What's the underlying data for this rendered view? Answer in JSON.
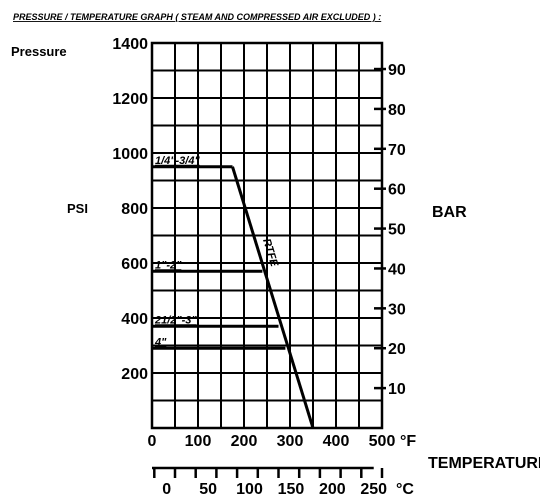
{
  "chart_data": {
    "type": "line",
    "title": "PRESSURE / TEMPERATURE GRAPH ( STEAM AND COMPRESSED AIR EXCLUDED ) :",
    "y_title": "Pressure",
    "y_left_label": "PSI",
    "y_right_label": "BAR",
    "x_label": "TEMPERATURE",
    "x_unit_f": "°F",
    "x_unit_c": "°C",
    "xlim_f": [
      0,
      500
    ],
    "ylim_psi": [
      0,
      1400
    ],
    "grid": true,
    "psi_ticks": [
      {
        "value": 200,
        "label": "200"
      },
      {
        "value": 400,
        "label": "400"
      },
      {
        "value": 600,
        "label": "600"
      },
      {
        "value": 800,
        "label": "800"
      },
      {
        "value": 1000,
        "label": "1000"
      },
      {
        "value": 1200,
        "label": "1200"
      },
      {
        "value": 1400,
        "label": "1400"
      }
    ],
    "bar_ticks": [
      {
        "value": 10,
        "label": "10"
      },
      {
        "value": 20,
        "label": "20"
      },
      {
        "value": 30,
        "label": "30"
      },
      {
        "value": 40,
        "label": "40"
      },
      {
        "value": 50,
        "label": "50"
      },
      {
        "value": 60,
        "label": "60"
      },
      {
        "value": 70,
        "label": "70"
      },
      {
        "value": 80,
        "label": "80"
      },
      {
        "value": 90,
        "label": "90"
      }
    ],
    "f_ticks": [
      {
        "value": 0,
        "label": "0"
      },
      {
        "value": 100,
        "label": "100"
      },
      {
        "value": 200,
        "label": "200"
      },
      {
        "value": 300,
        "label": "300"
      },
      {
        "value": 400,
        "label": "400"
      },
      {
        "value": 500,
        "label": "500"
      }
    ],
    "c_ticks": [
      {
        "value": 0,
        "label": "0"
      },
      {
        "value": 50,
        "label": "50"
      },
      {
        "value": 100,
        "label": "100"
      },
      {
        "value": 150,
        "label": "150"
      },
      {
        "value": 200,
        "label": "200"
      },
      {
        "value": 250,
        "label": "250"
      }
    ],
    "rtfe_line": {
      "label": "RTFE",
      "x": [
        175,
        350
      ],
      "y": [
        950,
        0
      ]
    },
    "series": [
      {
        "name": "1/4\"-3/4\"",
        "x": [
          0,
          175
        ],
        "y": [
          950,
          950
        ]
      },
      {
        "name": "1\"-2\"",
        "x": [
          0,
          240
        ],
        "y": [
          570,
          570
        ]
      },
      {
        "name": "21/2\"-3\"",
        "x": [
          0,
          275
        ],
        "y": [
          370,
          370
        ]
      },
      {
        "name": "4\"",
        "x": [
          0,
          290
        ],
        "y": [
          290,
          290
        ]
      }
    ]
  }
}
